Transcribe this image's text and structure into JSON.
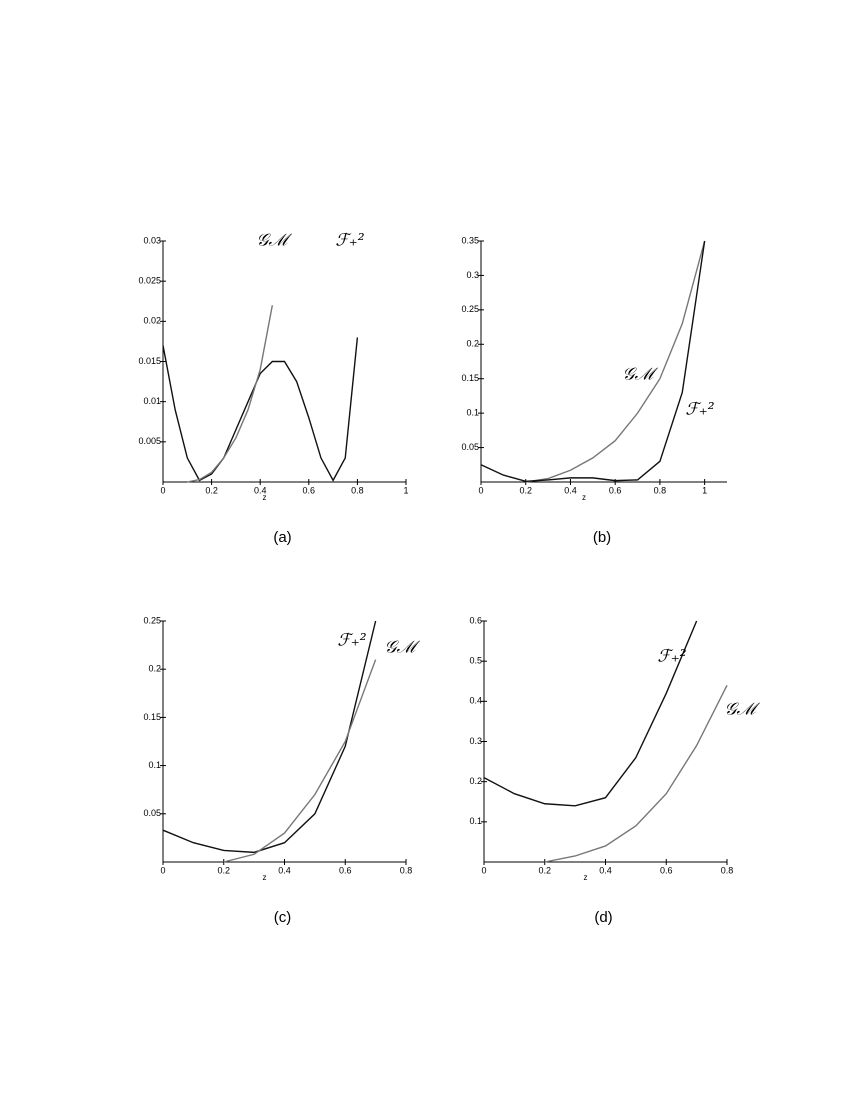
{
  "chart_data": [
    {
      "type": "line",
      "caption": "(a)",
      "xlabel": "z",
      "x": [
        0,
        0.05,
        0.1,
        0.15,
        0.2,
        0.25,
        0.3,
        0.35,
        0.4,
        0.45,
        0.5,
        0.55,
        0.6,
        0.65,
        0.7,
        0.75,
        0.8
      ],
      "series": [
        {
          "name": "ℱ₊²",
          "color": "#111111",
          "values": [
            0.017,
            0.009,
            0.003,
            0.0002,
            0.001,
            0.003,
            0.0065,
            0.01,
            0.0135,
            0.015,
            0.015,
            0.0125,
            0.008,
            0.003,
            0.0002,
            0.003,
            0.018
          ]
        },
        {
          "name": "𝒢ℳ",
          "color": "#777777",
          "values": [
            null,
            null,
            0,
            0.0003,
            0.0012,
            0.003,
            0.0055,
            0.009,
            0.014,
            0.022,
            null,
            null,
            null,
            null,
            null,
            null,
            null
          ]
        }
      ],
      "xlim": [
        0,
        1
      ],
      "ylim": [
        0,
        0.03
      ],
      "xticks": [
        0,
        0.2,
        0.4,
        0.6,
        0.8,
        1
      ],
      "yticks": [
        0.005,
        0.01,
        0.015,
        0.02,
        0.025,
        0.03
      ]
    },
    {
      "type": "line",
      "caption": "(b)",
      "xlabel": "z",
      "x": [
        0,
        0.1,
        0.2,
        0.3,
        0.4,
        0.5,
        0.6,
        0.7,
        0.8,
        0.9,
        1
      ],
      "series": [
        {
          "name": "𝒢ℳ",
          "color": "#777777",
          "values": [
            null,
            null,
            0,
            0.005,
            0.017,
            0.035,
            0.06,
            0.1,
            0.15,
            0.23,
            0.35
          ]
        },
        {
          "name": "ℱ₊²",
          "color": "#111111",
          "values": [
            0.025,
            0.01,
            0.001,
            0.003,
            0.006,
            0.006,
            0.002,
            0.003,
            0.03,
            0.13,
            0.35
          ]
        }
      ],
      "xlim": [
        0,
        1.1
      ],
      "ylim": [
        0,
        0.35
      ],
      "xticks": [
        0,
        0.2,
        0.4,
        0.6,
        0.8,
        1
      ],
      "yticks": [
        0.05,
        0.1,
        0.15,
        0.2,
        0.25,
        0.3,
        0.35
      ]
    },
    {
      "type": "line",
      "caption": "(c)",
      "xlabel": "z",
      "x": [
        0,
        0.1,
        0.2,
        0.3,
        0.4,
        0.5,
        0.6,
        0.7
      ],
      "series": [
        {
          "name": "ℱ₊²",
          "color": "#111111",
          "values": [
            0.033,
            0.02,
            0.012,
            0.01,
            0.02,
            0.05,
            0.12,
            0.25
          ]
        },
        {
          "name": "𝒢ℳ",
          "color": "#777777",
          "values": [
            null,
            null,
            0,
            0.008,
            0.03,
            0.07,
            0.125,
            0.21
          ]
        }
      ],
      "xlim": [
        0,
        0.8
      ],
      "ylim": [
        0,
        0.25
      ],
      "xticks": [
        0,
        0.2,
        0.4,
        0.6,
        0.8
      ],
      "yticks": [
        0.05,
        0.1,
        0.15,
        0.2,
        0.25
      ]
    },
    {
      "type": "line",
      "caption": "(d)",
      "xlabel": "z",
      "x": [
        0,
        0.1,
        0.2,
        0.3,
        0.4,
        0.5,
        0.6,
        0.7,
        0.8
      ],
      "series": [
        {
          "name": "ℱ₊²",
          "color": "#111111",
          "values": [
            0.21,
            0.17,
            0.145,
            0.14,
            0.16,
            0.26,
            0.42,
            0.6,
            null
          ]
        },
        {
          "name": "𝒢ℳ",
          "color": "#777777",
          "values": [
            null,
            null,
            0,
            0.015,
            0.04,
            0.09,
            0.17,
            0.29,
            0.44
          ]
        }
      ],
      "xlim": [
        0,
        0.8
      ],
      "ylim": [
        0,
        0.6
      ],
      "xticks": [
        0,
        0.2,
        0.4,
        0.6,
        0.8
      ],
      "yticks": [
        0.1,
        0.2,
        0.3,
        0.4,
        0.5,
        0.6
      ]
    }
  ]
}
